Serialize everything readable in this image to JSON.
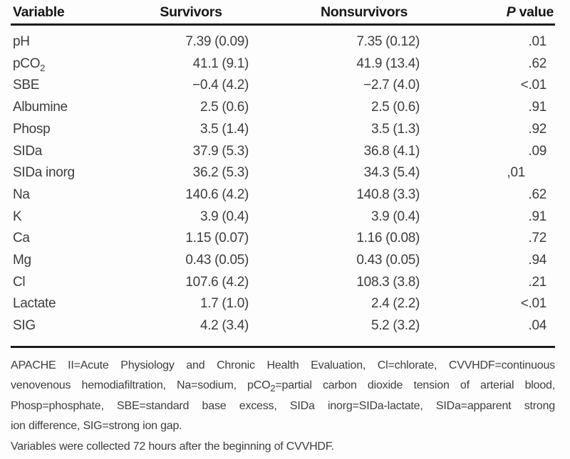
{
  "table": {
    "headers": {
      "variable": "Variable",
      "survivors": "Survivors",
      "nonsurvivors": "Nonsurvivors",
      "p_italic": "P",
      "p_rest": " value"
    },
    "rows": [
      {
        "variable": "pH",
        "survivors": "7.39 (0.09)",
        "nonsurvivors": "7.35 (0.12)",
        "p": ".01"
      },
      {
        "variable": "pCO",
        "variable_sub": "2",
        "survivors": "41.1 (9.1)",
        "nonsurvivors": "41.9 (13.4)",
        "p": ".62"
      },
      {
        "variable": "SBE",
        "survivors": "−0.4 (4.2)",
        "nonsurvivors": "−2.7 (4.0)",
        "p": "<.01"
      },
      {
        "variable": "Albumine",
        "survivors": "2.5 (0.6)",
        "nonsurvivors": "2.5 (0.6)",
        "p": ".91"
      },
      {
        "variable": "Phosp",
        "survivors": "3.5 (1.4)",
        "nonsurvivors": "3.5 (1.3)",
        "p": ".92"
      },
      {
        "variable": "SIDa",
        "survivors": "37.9 (5.3)",
        "nonsurvivors": "36.8 (4.1)",
        "p": ".09"
      },
      {
        "variable": "SIDa inorg",
        "survivors": "36.2 (5.3)",
        "nonsurvivors": "34.3 (5.4)",
        "p": ",01",
        "p_shift": true
      },
      {
        "variable": "Na",
        "survivors": "140.6 (4.2)",
        "nonsurvivors": "140.8 (3.3)",
        "p": ".62"
      },
      {
        "variable": "K",
        "survivors": "3.9 (0.4)",
        "nonsurvivors": "3.9 (0.4)",
        "p": ".91"
      },
      {
        "variable": "Ca",
        "survivors": "1.15 (0.07)",
        "nonsurvivors": "1.16 (0.08)",
        "p": ".72"
      },
      {
        "variable": "Mg",
        "survivors": "0.43 (0.05)",
        "nonsurvivors": "0.43 (0.05)",
        "p": ".94"
      },
      {
        "variable": "Cl",
        "survivors": "107.6 (4.2)",
        "nonsurvivors": "108.3 (3.8)",
        "p": ".21"
      },
      {
        "variable": "Lactate",
        "survivors": "1.7 (1.0)",
        "nonsurvivors": "2.4 (2.2)",
        "p": "<.01"
      },
      {
        "variable": "SIG",
        "survivors": "4.2 (3.4)",
        "nonsurvivors": "5.2 (3.2)",
        "p": ".04"
      }
    ]
  },
  "footnote": {
    "line1": "APACHE II=Acute Physiology and Chronic Health Evaluation, Cl=chlorate, CVVHDF=continuous",
    "line2_pre": "venovenous hemodiafiltration, Na=sodium, pCO",
    "line2_sub": "2",
    "line2_post": "=partial carbon dioxide tension of arterial blood,",
    "line3": "Phosp=phosphate, SBE=standard base excess, SIDa inorg=SIDa-lactate, SIDa=apparent strong",
    "line4": "ion difference, SIG=strong ion gap.",
    "line5": "Variables were collected 72 hours after the beginning of CVVHDF."
  },
  "colors": {
    "text": "#3d3d3d",
    "header_text": "#161616",
    "rule": "#1c1c1c",
    "background": "#fdfdfd"
  }
}
